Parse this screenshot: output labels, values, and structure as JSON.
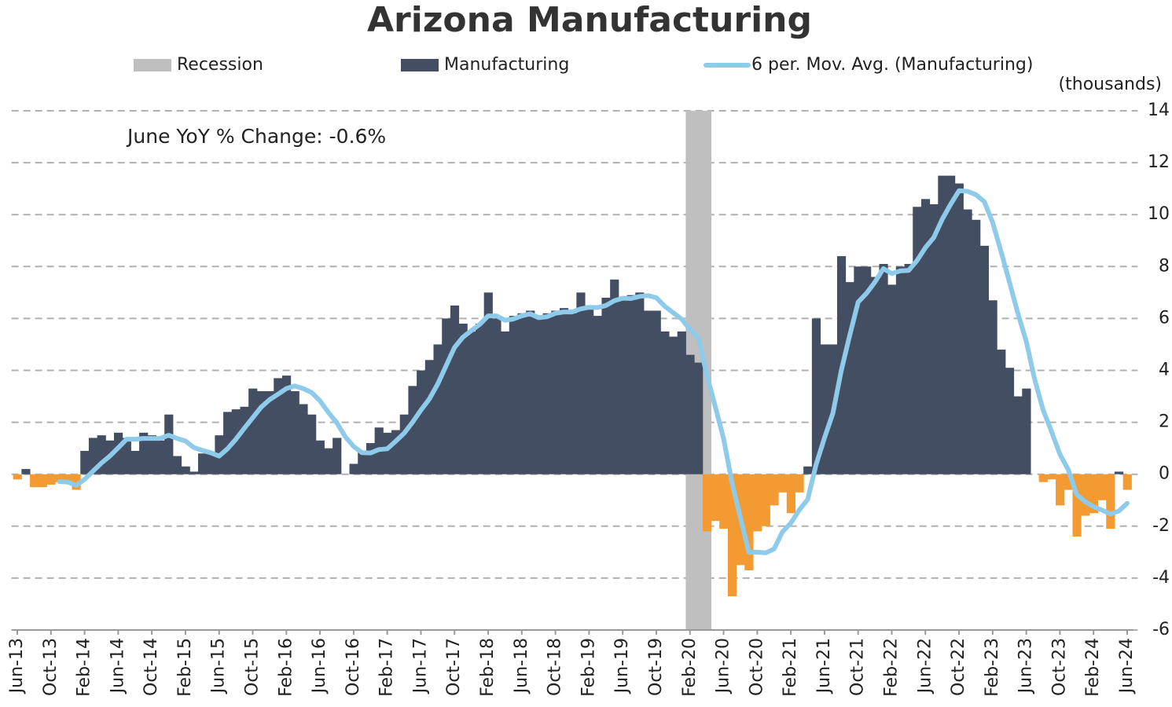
{
  "chart_data": {
    "type": "bar",
    "title": "Arizona Manufacturing",
    "annotation": "June YoY % Change: -0.6%",
    "y_axis_label": "(thousands)",
    "categories": [
      "Jun-13",
      null,
      null,
      null,
      "Oct-13",
      null,
      null,
      null,
      "Feb-14",
      null,
      null,
      null,
      "Jun-14",
      null,
      null,
      null,
      "Oct-14",
      null,
      null,
      null,
      "Feb-15",
      null,
      null,
      null,
      "Jun-15",
      null,
      null,
      null,
      "Oct-15",
      null,
      null,
      null,
      "Feb-16",
      null,
      null,
      null,
      "Jun-16",
      null,
      null,
      null,
      "Oct-16",
      null,
      null,
      null,
      "Feb-17",
      null,
      null,
      null,
      "Jun-17",
      null,
      null,
      null,
      "Oct-17",
      null,
      null,
      null,
      "Feb-18",
      null,
      null,
      null,
      "Jun-18",
      null,
      null,
      null,
      "Oct-18",
      null,
      null,
      null,
      "Feb-19",
      null,
      null,
      null,
      "Jun-19",
      null,
      null,
      null,
      "Oct-19",
      null,
      null,
      null,
      "Feb-20",
      null,
      null,
      null,
      "Jun-20",
      null,
      null,
      null,
      "Oct-20",
      null,
      null,
      null,
      "Feb-21",
      null,
      null,
      null,
      "Jun-21",
      null,
      null,
      null,
      "Oct-21",
      null,
      null,
      null,
      "Feb-22",
      null,
      null,
      null,
      "Jun-22",
      null,
      null,
      null,
      "Oct-22",
      null,
      null,
      null,
      "Feb-23",
      null,
      null,
      null,
      "Jun-23",
      null,
      null,
      null,
      "Oct-23",
      null,
      null,
      null,
      "Feb-24",
      null,
      null,
      null,
      "Jun-24"
    ],
    "series": [
      {
        "name": "Recession",
        "type": "recession",
        "color": "#bfbfbf",
        "values": [
          null,
          null,
          null,
          null,
          null,
          null,
          null,
          null,
          null,
          null,
          null,
          null,
          null,
          null,
          null,
          null,
          null,
          null,
          null,
          null,
          null,
          null,
          null,
          null,
          null,
          null,
          null,
          null,
          null,
          null,
          null,
          null,
          null,
          null,
          null,
          null,
          null,
          null,
          null,
          null,
          null,
          null,
          null,
          null,
          null,
          null,
          null,
          null,
          null,
          null,
          null,
          null,
          null,
          null,
          null,
          null,
          null,
          null,
          null,
          null,
          null,
          null,
          null,
          null,
          null,
          null,
          null,
          null,
          null,
          null,
          null,
          null,
          null,
          null,
          null,
          null,
          null,
          null,
          null,
          null,
          14,
          14,
          14,
          null,
          null,
          null,
          null,
          null,
          null,
          null,
          null,
          null,
          null,
          null,
          null,
          null,
          null,
          null,
          null,
          null,
          null,
          null,
          null,
          null,
          null,
          null,
          null,
          null,
          null,
          null,
          null,
          null,
          null,
          null,
          null,
          null,
          null,
          null,
          null,
          null,
          null,
          null,
          null,
          null,
          null,
          null,
          null,
          null,
          null,
          null,
          null,
          null,
          null
        ]
      },
      {
        "name": "Manufacturing",
        "type": "bar",
        "color": "#434e63",
        "negative_color": "#f39a32",
        "values": [
          -0.2,
          0.2,
          -0.5,
          -0.5,
          -0.4,
          -0.3,
          -0.3,
          -0.6,
          0.9,
          1.4,
          1.5,
          1.3,
          1.6,
          1.4,
          0.9,
          1.6,
          1.5,
          1.3,
          2.3,
          0.7,
          0.3,
          0.1,
          0.8,
          0.8,
          1.5,
          2.4,
          2.5,
          2.6,
          3.3,
          3.2,
          3.2,
          3.7,
          3.8,
          3.2,
          2.7,
          2.3,
          1.3,
          1.0,
          1.4,
          0,
          0.4,
          0.9,
          1.2,
          1.8,
          1.6,
          1.7,
          2.3,
          3.4,
          4.0,
          4.4,
          5.0,
          6.0,
          6.5,
          5.8,
          5.5,
          5.8,
          7.0,
          6.0,
          5.5,
          6.1,
          6.2,
          6.3,
          6.1,
          6.2,
          6.3,
          6.4,
          6.2,
          7.0,
          6.5,
          6.1,
          6.8,
          7.5,
          6.8,
          6.9,
          7.0,
          6.3,
          6.3,
          5.5,
          5.3,
          5.5,
          4.6,
          4.3,
          -2.2,
          -1.8,
          -2.1,
          -4.7,
          -3.5,
          -3.7,
          -2.2,
          -2.0,
          -1.2,
          -0.7,
          -1.5,
          -0.7,
          0.3,
          6.0,
          5.0,
          5.0,
          8.4,
          7.4,
          8.0,
          8.0,
          7.6,
          8.1,
          7.3,
          8.0,
          8.1,
          10.3,
          10.6,
          10.4,
          11.5,
          11.5,
          11.2,
          10.2,
          9.8,
          8.8,
          6.7,
          4.8,
          4.1,
          3.0,
          3.3,
          0,
          -0.3,
          -0.2,
          -1.2,
          -0.6,
          -2.4,
          -1.6,
          -1.5,
          -1.0,
          -2.1,
          0.1,
          -0.6
        ]
      },
      {
        "name": "6 per. Mov. Avg. (Manufacturing)",
        "type": "line",
        "color": "#8ecae9",
        "values": [
          null,
          null,
          null,
          null,
          null,
          -0.28,
          -0.3,
          -0.43,
          -0.2,
          0.12,
          0.43,
          0.7,
          1.02,
          1.35,
          1.35,
          1.38,
          1.38,
          1.38,
          1.5,
          1.38,
          1.28,
          1.03,
          0.92,
          0.83,
          0.7,
          0.98,
          1.35,
          1.77,
          2.18,
          2.58,
          2.87,
          3.08,
          3.3,
          3.4,
          3.3,
          3.15,
          2.83,
          2.38,
          1.98,
          1.45,
          1.07,
          0.83,
          0.82,
          0.95,
          0.98,
          1.27,
          1.58,
          2.0,
          2.47,
          2.9,
          3.47,
          4.18,
          4.88,
          5.28,
          5.53,
          5.77,
          6.1,
          6.1,
          5.93,
          5.98,
          6.1,
          6.18,
          6.03,
          6.07,
          6.2,
          6.25,
          6.25,
          6.37,
          6.43,
          6.42,
          6.5,
          6.68,
          6.78,
          6.77,
          6.85,
          6.88,
          6.8,
          6.47,
          6.22,
          5.98,
          5.58,
          5.25,
          3.83,
          2.62,
          1.38,
          -0.32,
          -1.67,
          -3.0,
          -3.0,
          -3.03,
          -2.88,
          -2.22,
          -1.88,
          -1.38,
          -0.97,
          0.37,
          1.4,
          2.35,
          4.0,
          5.35,
          6.63,
          6.97,
          7.4,
          7.92,
          7.73,
          7.83,
          7.85,
          8.23,
          8.73,
          9.12,
          9.82,
          10.4,
          10.92,
          10.9,
          10.77,
          10.5,
          9.7,
          8.58,
          7.4,
          6.2,
          5.12,
          3.65,
          2.48,
          1.65,
          0.77,
          0.17,
          -0.78,
          -1.05,
          -1.25,
          -1.38,
          -1.53,
          -1.42,
          -1.12
        ]
      }
    ],
    "ylim": [
      -6,
      14
    ],
    "yticks": [
      -6,
      -4,
      -2,
      0,
      2,
      4,
      6,
      8,
      10,
      12,
      14
    ],
    "grid": true,
    "legend": "top"
  }
}
